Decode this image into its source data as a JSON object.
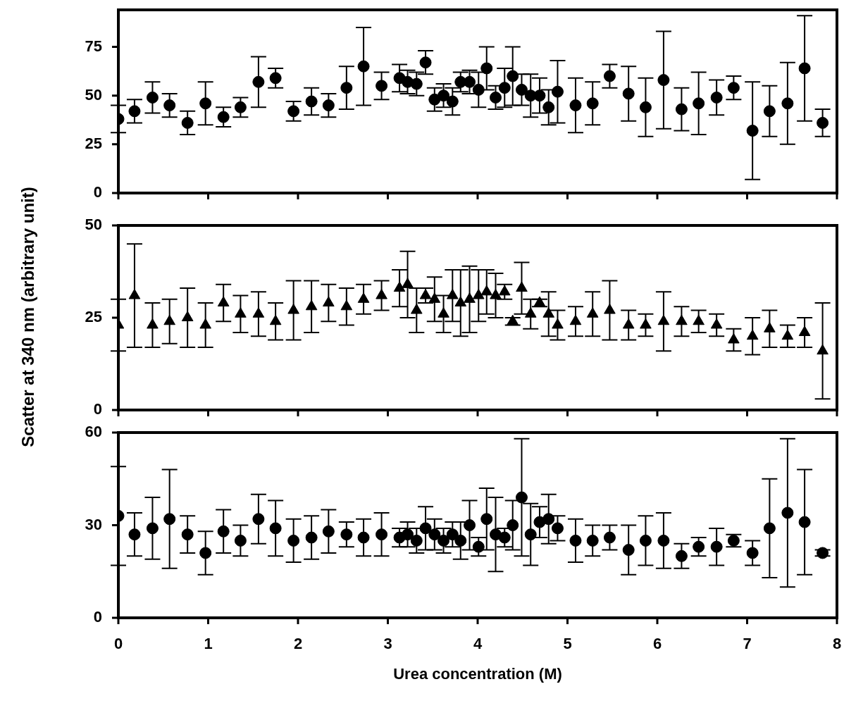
{
  "chart_data": [
    {
      "type": "scatter",
      "marker": "circle",
      "tick_labels": "y",
      "xlim": [
        0,
        8
      ],
      "xticks": [
        0,
        1,
        2,
        3,
        4,
        5,
        6,
        7,
        8
      ],
      "ylim": [
        0,
        94
      ],
      "yticks": [
        0,
        25,
        50,
        75
      ],
      "x": [
        0,
        0.18,
        0.38,
        0.57,
        0.77,
        0.97,
        1.17,
        1.36,
        1.56,
        1.75,
        1.95,
        2.15,
        2.34,
        2.54,
        2.73,
        2.93,
        3.13,
        3.22,
        3.32,
        3.42,
        3.52,
        3.62,
        3.72,
        3.81,
        3.91,
        4.01,
        4.1,
        4.2,
        4.3,
        4.39,
        4.49,
        4.59,
        4.69,
        4.79,
        4.89,
        5.09,
        5.28,
        5.47,
        5.68,
        5.87,
        6.07,
        6.27,
        6.46,
        6.66,
        6.85,
        7.06,
        7.25,
        7.45,
        7.64,
        7.84
      ],
      "series": [
        {
          "color": "#000000",
          "values": [
            38,
            42,
            49,
            45,
            36,
            46,
            39,
            44,
            57,
            59,
            42,
            47,
            45,
            54,
            65,
            55,
            59,
            57,
            56,
            67,
            48,
            50,
            47,
            57,
            57,
            53,
            64,
            49,
            54,
            60,
            53,
            50,
            50,
            44,
            52,
            45,
            46,
            60,
            51,
            44,
            58,
            43,
            46,
            49,
            54,
            32,
            42,
            46,
            64,
            36
          ],
          "errors": [
            7,
            6,
            8,
            6,
            6,
            11,
            5,
            5,
            13,
            5,
            5,
            7,
            6,
            11,
            20,
            7,
            7,
            6,
            6,
            6,
            6,
            6,
            7,
            5,
            6,
            9,
            11,
            6,
            10,
            15,
            8,
            11,
            9,
            9,
            16,
            14,
            11,
            6,
            14,
            15,
            25,
            11,
            16,
            9,
            6,
            25,
            13,
            21,
            27,
            7
          ]
        }
      ]
    },
    {
      "type": "scatter",
      "marker": "triangle",
      "tick_labels": "y",
      "ylabel": "Scatter at 340 nm (arbitrary unit)",
      "xlim": [
        0,
        8
      ],
      "xticks": [
        0,
        1,
        2,
        3,
        4,
        5,
        6,
        7,
        8
      ],
      "ylim": [
        0,
        50
      ],
      "yticks": [
        0,
        25,
        50
      ],
      "x": [
        0,
        0.18,
        0.38,
        0.57,
        0.77,
        0.97,
        1.17,
        1.36,
        1.56,
        1.75,
        1.95,
        2.15,
        2.34,
        2.54,
        2.73,
        2.93,
        3.13,
        3.22,
        3.32,
        3.42,
        3.52,
        3.62,
        3.72,
        3.81,
        3.91,
        4.01,
        4.1,
        4.2,
        4.3,
        4.39,
        4.49,
        4.59,
        4.69,
        4.79,
        4.89,
        5.09,
        5.28,
        5.47,
        5.68,
        5.87,
        6.07,
        6.27,
        6.46,
        6.66,
        6.85,
        7.06,
        7.25,
        7.45,
        7.64,
        7.84
      ],
      "series": [
        {
          "color": "#000000",
          "values": [
            23,
            31,
            23,
            24,
            25,
            23,
            29,
            26,
            26,
            24,
            27,
            28,
            29,
            28,
            30,
            31,
            33,
            34,
            27,
            31,
            30,
            26,
            31,
            29,
            30,
            31,
            32,
            31,
            32,
            24,
            33,
            26,
            29,
            26,
            23,
            24,
            26,
            27,
            23,
            23,
            24,
            24,
            24,
            23,
            19,
            20,
            22,
            20,
            21,
            16
          ],
          "errors": [
            7,
            14,
            6,
            6,
            8,
            6,
            5,
            5,
            6,
            5,
            8,
            7,
            5,
            5,
            4,
            4,
            5,
            9,
            6,
            2,
            6,
            5,
            7,
            9,
            9,
            7,
            6,
            6,
            2,
            1,
            7,
            4,
            1,
            6,
            4,
            4,
            6,
            8,
            4,
            3,
            8,
            4,
            3,
            3,
            3,
            5,
            5,
            3,
            4,
            13
          ]
        }
      ]
    },
    {
      "type": "scatter",
      "marker": "circle",
      "xlabel": "Urea concentration (M)",
      "xlim": [
        0,
        8
      ],
      "xticks": [
        0,
        1,
        2,
        3,
        4,
        5,
        6,
        7,
        8
      ],
      "ylim": [
        0,
        60
      ],
      "yticks": [
        0,
        30,
        60
      ],
      "x": [
        0,
        0.18,
        0.38,
        0.57,
        0.77,
        0.97,
        1.17,
        1.36,
        1.56,
        1.75,
        1.95,
        2.15,
        2.34,
        2.54,
        2.73,
        2.93,
        3.13,
        3.22,
        3.32,
        3.42,
        3.52,
        3.62,
        3.72,
        3.81,
        3.91,
        4.01,
        4.1,
        4.2,
        4.3,
        4.39,
        4.49,
        4.59,
        4.69,
        4.79,
        4.89,
        5.09,
        5.28,
        5.47,
        5.68,
        5.87,
        6.07,
        6.27,
        6.46,
        6.66,
        6.85,
        7.06,
        7.25,
        7.45,
        7.64,
        7.84
      ],
      "series": [
        {
          "color": "#000000",
          "values": [
            33,
            27,
            29,
            32,
            27,
            21,
            28,
            25,
            32,
            29,
            25,
            26,
            28,
            27,
            26,
            27,
            26,
            27,
            25,
            29,
            27,
            25,
            27,
            25,
            30,
            23,
            32,
            27,
            26,
            30,
            39,
            27,
            31,
            32,
            29,
            25,
            25,
            26,
            22,
            25,
            25,
            20,
            23,
            23,
            25,
            21,
            29,
            34,
            31,
            21
          ],
          "errors": [
            16,
            7,
            10,
            16,
            6,
            7,
            7,
            5,
            8,
            9,
            7,
            7,
            7,
            4,
            6,
            7,
            3,
            4,
            4,
            7,
            5,
            4,
            4,
            6,
            8,
            3,
            10,
            12,
            3,
            8,
            19,
            10,
            5,
            8,
            4,
            7,
            5,
            4,
            8,
            8,
            9,
            4,
            3,
            6,
            2,
            4,
            16,
            24,
            17,
            1
          ]
        }
      ]
    }
  ]
}
